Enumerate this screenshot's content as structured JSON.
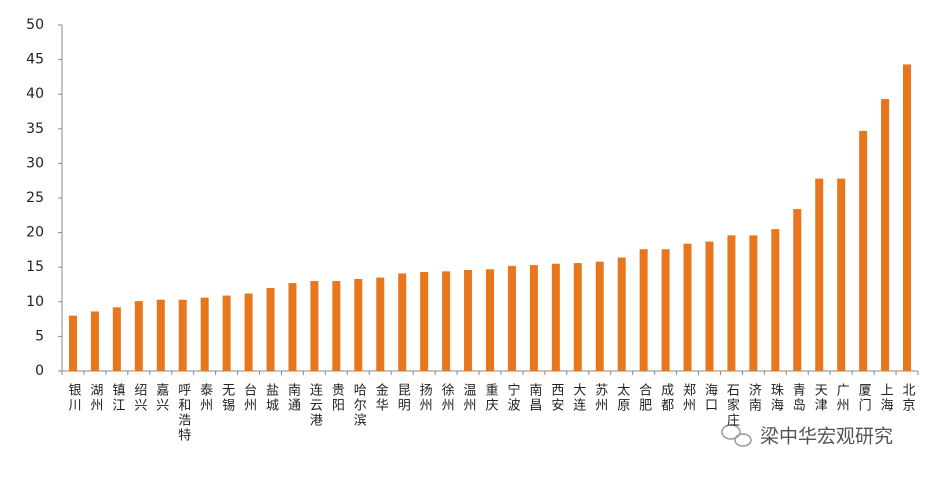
{
  "chart_data": {
    "type": "bar",
    "categories": [
      "银川",
      "湖州",
      "镇江",
      "绍兴",
      "嘉兴",
      "呼和浩特",
      "泰州",
      "无锡",
      "台州",
      "盐城",
      "南通",
      "连云港",
      "贵阳",
      "哈尔滨",
      "金华",
      "昆明",
      "扬州",
      "徐州",
      "温州",
      "重庆",
      "宁波",
      "南昌",
      "西安",
      "大连",
      "苏州",
      "太原",
      "合肥",
      "成都",
      "郑州",
      "海口",
      "石家庄",
      "济南",
      "珠海",
      "青岛",
      "天津",
      "广州",
      "厦门",
      "上海",
      "北京"
    ],
    "values": [
      8.0,
      8.6,
      9.2,
      10.1,
      10.3,
      10.3,
      10.6,
      10.9,
      11.2,
      12.0,
      12.7,
      13.0,
      13.0,
      13.3,
      13.5,
      14.1,
      14.3,
      14.4,
      14.6,
      14.7,
      15.2,
      15.3,
      15.5,
      15.6,
      15.8,
      16.4,
      17.6,
      17.6,
      18.4,
      18.7,
      19.6,
      19.6,
      20.5,
      23.4,
      27.8,
      27.8,
      34.7,
      39.3,
      44.3
    ],
    "color": "#e8761c",
    "ylim": [
      0,
      50
    ],
    "yticks": [
      0,
      5,
      10,
      15,
      20,
      25,
      30,
      35,
      40,
      45,
      50
    ],
    "grid": false,
    "watermark": "梁中华宏观研究"
  }
}
